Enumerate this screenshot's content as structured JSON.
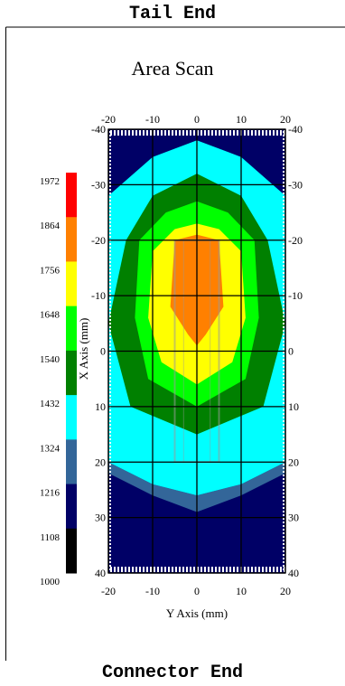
{
  "header": {
    "top_label": "Tail End",
    "bottom_label": "Connector End"
  },
  "chart_data": {
    "type": "heatmap",
    "title": "Area Scan",
    "xlabel": "Y Axis (mm)",
    "ylabel": "X Axis (mm)",
    "xlim": [
      -20,
      20
    ],
    "ylim": [
      -40,
      40
    ],
    "x_ticks": [
      "-20",
      "-10",
      "0",
      "10",
      "20"
    ],
    "y_ticks": [
      "-40",
      "-30",
      "-20",
      "-10",
      "0",
      "10",
      "20",
      "30",
      "40"
    ],
    "grid": true,
    "colorbar": {
      "ticks": [
        "1972",
        "1864",
        "1756",
        "1648",
        "1540",
        "1432",
        "1324",
        "1216",
        "1108",
        "1000"
      ],
      "colors": [
        "#ff0000",
        "#ff8000",
        "#ffff00",
        "#00ff00",
        "#008000",
        "#00ffff",
        "#336699",
        "#000066",
        "#000000"
      ]
    },
    "contours": [
      {
        "level": "1216",
        "color": "#336699",
        "points": [
          [
            -20,
            20
          ],
          [
            -10,
            24
          ],
          [
            0,
            26
          ],
          [
            10,
            24
          ],
          [
            20,
            20
          ],
          [
            20,
            22
          ],
          [
            10,
            26
          ],
          [
            0,
            29
          ],
          [
            -10,
            26
          ],
          [
            -20,
            22
          ]
        ]
      },
      {
        "level": "1324",
        "color": "#00ffff",
        "points": [
          [
            -20,
            -28
          ],
          [
            -10,
            -35
          ],
          [
            0,
            -38
          ],
          [
            10,
            -35
          ],
          [
            20,
            -28
          ],
          [
            20,
            20
          ],
          [
            10,
            24
          ],
          [
            0,
            26
          ],
          [
            -10,
            24
          ],
          [
            -20,
            20
          ]
        ]
      },
      {
        "level": "1432",
        "color": "#008000",
        "points": [
          [
            -16,
            -20
          ],
          [
            -10,
            -28
          ],
          [
            0,
            -32
          ],
          [
            10,
            -28
          ],
          [
            16,
            -20
          ],
          [
            20,
            -5
          ],
          [
            15,
            10
          ],
          [
            0,
            15
          ],
          [
            -15,
            10
          ],
          [
            -20,
            -5
          ]
        ]
      },
      {
        "level": "1540",
        "color": "#00ff00",
        "points": [
          [
            -13,
            -20
          ],
          [
            -7,
            -25
          ],
          [
            0,
            -27
          ],
          [
            7,
            -25
          ],
          [
            13,
            -20
          ],
          [
            14,
            -6
          ],
          [
            11,
            5
          ],
          [
            0,
            10
          ],
          [
            -11,
            5
          ],
          [
            -14,
            -6
          ]
        ]
      },
      {
        "level": "1648",
        "color": "#ffff00",
        "points": [
          [
            -10,
            -18
          ],
          [
            -5,
            -22
          ],
          [
            0,
            -23
          ],
          [
            5,
            -22
          ],
          [
            10,
            -18
          ],
          [
            11,
            -6
          ],
          [
            8,
            2
          ],
          [
            0,
            6
          ],
          [
            -8,
            2
          ],
          [
            -11,
            -6
          ]
        ]
      },
      {
        "level": "1756",
        "color": "#ff8000",
        "points": [
          [
            -5,
            -20
          ],
          [
            0,
            -21
          ],
          [
            5,
            -20
          ],
          [
            6,
            -8
          ],
          [
            2,
            -3
          ],
          [
            0,
            -1
          ],
          [
            -2,
            -3
          ],
          [
            -6,
            -8
          ]
        ]
      }
    ]
  }
}
